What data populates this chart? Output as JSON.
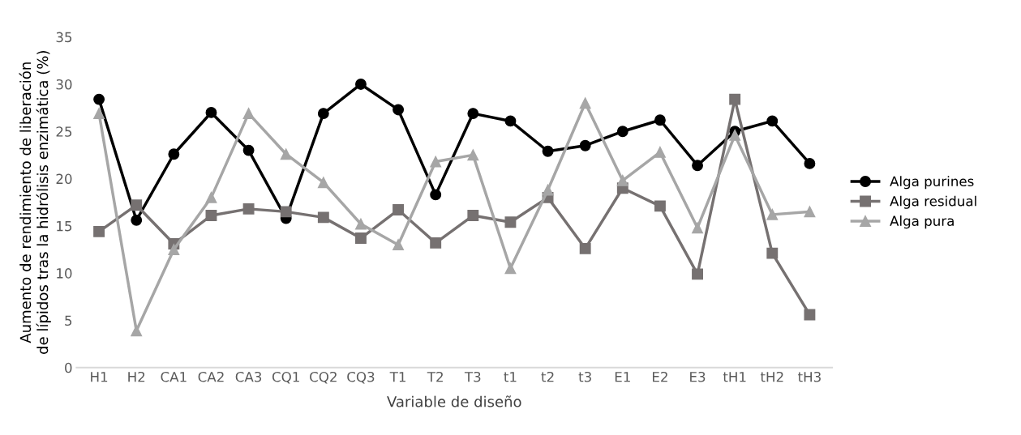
{
  "chart_data": {
    "type": "line",
    "xlabel": "Variable de diseño",
    "ylabel": "Aumento de rendimiento de liberación\nde lípidos tras la hidrólisis enzimática (%)",
    "categories": [
      "H1",
      "H2",
      "CA1",
      "CA2",
      "CA3",
      "CQ1",
      "CQ2",
      "CQ3",
      "T1",
      "T2",
      "T3",
      "t1",
      "t2",
      "t3",
      "E1",
      "E2",
      "E3",
      "tH1",
      "tH2",
      "tH3"
    ],
    "series": [
      {
        "name": "Alga purines",
        "color": "#000000",
        "marker": "circle",
        "values": [
          28.4,
          15.6,
          22.6,
          27,
          23,
          15.8,
          26.9,
          30,
          27.3,
          18.3,
          26.9,
          26.1,
          22.9,
          23.5,
          25,
          26.2,
          21.4,
          25,
          26.1,
          21.6
        ]
      },
      {
        "name": "Alga residual",
        "color": "#767171",
        "marker": "square",
        "values": [
          14.4,
          17.2,
          13.1,
          16.1,
          16.8,
          16.5,
          15.9,
          13.7,
          16.7,
          13.2,
          16.1,
          15.4,
          18,
          12.6,
          19,
          17.1,
          9.9,
          28.4,
          12.1,
          5.6
        ]
      },
      {
        "name": "Alga pura",
        "color": "#a6a6a6",
        "marker": "triangle",
        "values": [
          26.9,
          3.9,
          12.5,
          18,
          26.9,
          22.6,
          19.6,
          15.2,
          13,
          21.8,
          22.5,
          10.5,
          18.8,
          28,
          19.8,
          22.8,
          14.8,
          24.6,
          16.2,
          16.5
        ]
      }
    ],
    "ylim": [
      0,
      35
    ],
    "yticks": [
      0,
      5,
      10,
      15,
      20,
      25,
      30,
      35
    ],
    "grid": false,
    "legend": "right",
    "line_style": "solid"
  }
}
